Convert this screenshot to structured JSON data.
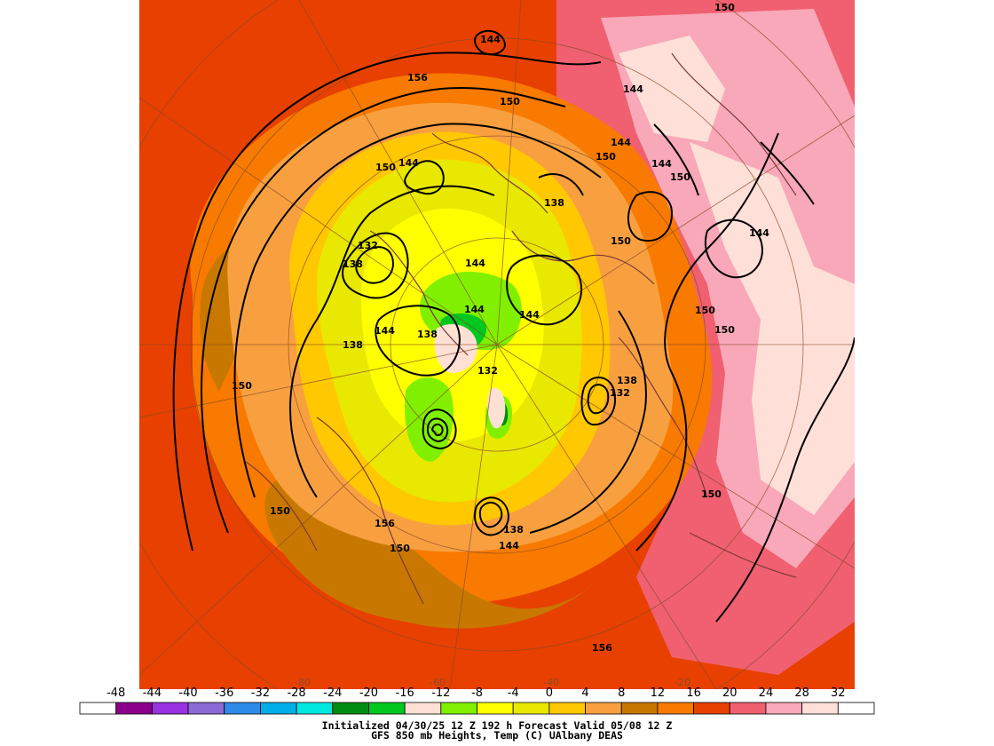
{
  "map": {
    "contour_labels": [
      "150",
      "144",
      "156",
      "150",
      "150",
      "144",
      "144",
      "150",
      "144",
      "144",
      "150",
      "150",
      "138",
      "150",
      "144",
      "132",
      "138",
      "144",
      "144",
      "144",
      "138",
      "144",
      "138",
      "132",
      "150",
      "138",
      "132",
      "150",
      "150",
      "156",
      "150",
      "138",
      "144",
      "156",
      "150"
    ],
    "grid_labels": [
      "-80",
      "-60",
      "-40",
      "-20"
    ]
  },
  "colorbar": {
    "ticks": [
      "-48",
      "-44",
      "-40",
      "-36",
      "-32",
      "-28",
      "-24",
      "-20",
      "-16",
      "-12",
      "-8",
      "-4",
      "0",
      "4",
      "8",
      "12",
      "16",
      "20",
      "24",
      "28",
      "32"
    ],
    "colors": [
      "#ffffff",
      "#8b008b",
      "#9932e0",
      "#8a6ad4",
      "#2e8ae8",
      "#00aee8",
      "#00e8e0",
      "#008c10",
      "#00c81e",
      "#ffe0d4",
      "#80f000",
      "#ffff00",
      "#e8e800",
      "#ffc800",
      "#f8a040",
      "#c87800",
      "#f87a00",
      "#e84000",
      "#f06070",
      "#f8a8b8",
      "#ffe0d8",
      "#ffffff"
    ]
  },
  "caption": {
    "line1": "Initialized 04/30/25 12 Z  192 h Forecast Valid 05/08 12 Z",
    "line2": "GFS 850 mb  Heights, Temp (C)      UAlbany DEAS"
  }
}
